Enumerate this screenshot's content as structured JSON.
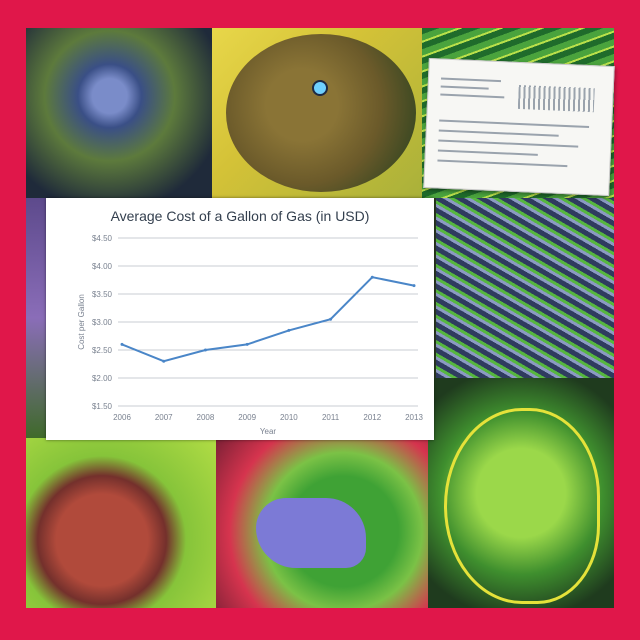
{
  "colors": {
    "frame": "#e0174a",
    "series_line": "#4a86c8",
    "grid": "#c9ccd3"
  },
  "chart_data": {
    "type": "line",
    "title": "Average Cost of a Gallon of Gas (in USD)",
    "xlabel": "Year",
    "ylabel": "Cost per Gallon",
    "categories": [
      "2006",
      "2007",
      "2008",
      "2009",
      "2010",
      "2011",
      "2012",
      "2013"
    ],
    "y_ticks": [
      "$4.50",
      "$4.00",
      "$3.50",
      "$3.00",
      "$2.50",
      "$2.00",
      "$1.50"
    ],
    "ylim": [
      1.5,
      4.5
    ],
    "series": [
      {
        "values": [
          2.6,
          2.3,
          2.5,
          2.6,
          2.85,
          3.05,
          3.8,
          3.65
        ]
      }
    ],
    "grid": true,
    "legend": "none"
  }
}
